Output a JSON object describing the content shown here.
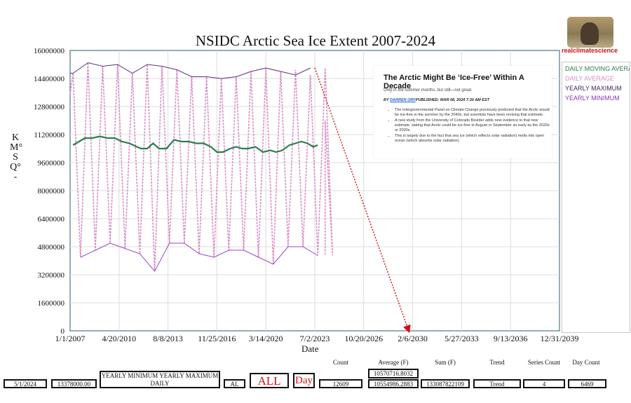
{
  "chart_data": {
    "type": "line",
    "title": "NSIDC Arctic Sea Ice Extent 2007-2024",
    "xlabel": "Date",
    "ylabel": "KM°SQ°-",
    "ylim": [
      0,
      16000000
    ],
    "yticks": [
      0,
      1600000,
      3200000,
      4800000,
      6400000,
      8000000,
      9600000,
      11200000,
      12800000,
      14400000,
      16000000
    ],
    "ytick_labels": [
      "0",
      "1600000",
      "3200000",
      "4800000",
      "6400000",
      "8000000",
      "9600000",
      "11200000",
      "12800000",
      "14400000",
      "16000000"
    ],
    "xlim": [
      2007.0,
      2040.0
    ],
    "xticks": [
      2007.0,
      2010.3,
      2013.6,
      2016.9,
      2020.2,
      2023.5,
      2026.8,
      2030.1,
      2033.4,
      2036.7,
      2040.0
    ],
    "xtick_labels": [
      "1/1/2007",
      "4/20/2010",
      "8/8/2013",
      "11/25/2016",
      "3/14/2020",
      "7/2/2023",
      "10/20/2026",
      "2/6/2030",
      "5/27/2033",
      "9/13/2036",
      "12/31/2039"
    ],
    "grid": true,
    "legend_position": "right",
    "series": [
      {
        "name": "DAILY MOVING AVERAGE",
        "color": "#2e7d4f",
        "x": [
          2007.2,
          2007.6,
          2008.0,
          2008.5,
          2009.0,
          2009.5,
          2010.0,
          2010.5,
          2011.0,
          2011.5,
          2011.8,
          2012.2,
          2012.6,
          2013.0,
          2013.5,
          2014.0,
          2014.5,
          2015.0,
          2015.5,
          2016.0,
          2016.5,
          2016.9,
          2017.3,
          2017.8,
          2018.2,
          2018.6,
          2019.0,
          2019.5,
          2020.0,
          2020.5,
          2020.9,
          2021.3,
          2021.8,
          2022.2,
          2022.6,
          2023.0,
          2023.4,
          2023.7
        ],
        "values": [
          10600000,
          10800000,
          11000000,
          11000000,
          11100000,
          11000000,
          11000000,
          10800000,
          10700000,
          10500000,
          10400000,
          10400000,
          10700000,
          10400000,
          10400000,
          10900000,
          10800000,
          10800000,
          10700000,
          10700000,
          10500000,
          10200000,
          10200000,
          10400000,
          10500000,
          10400000,
          10400000,
          10500000,
          10200000,
          10300000,
          10200000,
          10300000,
          10600000,
          10700000,
          10800000,
          10700000,
          10500000,
          10600000
        ]
      },
      {
        "name": "DAILY AVERAGE",
        "color": "#d88ec8",
        "peak_years": 17,
        "maxima": [
          14700000,
          15300000,
          15100000,
          15200000,
          14700000,
          15200000,
          15100000,
          14900000,
          14500000,
          14500000,
          14400000,
          14500000,
          14800000,
          15000000,
          14800000,
          14900000,
          14600000,
          15000000
        ],
        "minima": [
          4200000,
          4600000,
          5000000,
          4700000,
          4400000,
          3400000,
          5000000,
          5000000,
          4400000,
          4200000,
          4600000,
          4600000,
          4200000,
          3800000,
          4800000,
          4800000,
          4300000,
          4300000
        ]
      },
      {
        "name": "YEARLY MAXIMUM",
        "color": "#5a2f7a",
        "x": [
          2007.0,
          2007.2,
          2008.2,
          2009.2,
          2010.2,
          2011.2,
          2012.2,
          2013.2,
          2014.2,
          2015.2,
          2016.2,
          2017.2,
          2018.2,
          2019.2,
          2020.2,
          2021.2,
          2022.2,
          2023.2
        ],
        "values": [
          14700000,
          14700000,
          15300000,
          15100000,
          15200000,
          14700000,
          15200000,
          15100000,
          14900000,
          14500000,
          14500000,
          14400000,
          14500000,
          14800000,
          15000000,
          14800000,
          14600000,
          15000000
        ]
      },
      {
        "name": "YEARLY MINIMUM",
        "color": "#9a46c4",
        "x": [
          2007.7,
          2008.7,
          2009.7,
          2010.7,
          2011.7,
          2012.7,
          2013.7,
          2014.7,
          2015.7,
          2016.7,
          2017.7,
          2018.7,
          2019.7,
          2020.7,
          2021.7,
          2022.7,
          2023.7
        ],
        "values": [
          4200000,
          4600000,
          5000000,
          4700000,
          4400000,
          3400000,
          5000000,
          5000000,
          4400000,
          4200000,
          4600000,
          4600000,
          4200000,
          3800000,
          4800000,
          4800000,
          4300000
        ]
      }
    ],
    "annotation": {
      "from": [
        2023.5,
        15000000
      ],
      "to": [
        2029.8,
        0
      ],
      "color": "#d01010"
    }
  },
  "legend": {
    "moving_average": "DAILY MOVING AVERAGE",
    "daily_average": "DAILY AVERAGE",
    "yearly_maximum": "YEARLY MAXIMUM",
    "yearly_minimum": "YEARLY MINIMUM"
  },
  "brand": "realclimatescience",
  "article": {
    "title": "The Arctic Might Be ‘Ice-Free’ Within A Decade",
    "subtitle": "Only in the summer months, but still—not great.",
    "by": "BY",
    "author": "DARREN ORF",
    "published": "PUBLISHED: MAR 08, 2024 7:30 AM EST",
    "bullets": [
      "The Intergovernmental Panel on Climate Change previously predicted that the Arctic would be ice-free in the summer by the 2040s, but scientists have been revising that estimate.",
      "A new study from the University of Colorado Boulder adds new evidence to that new estimate, stating that Arctic could be ice-free in August or September as early as the 2020s or 2030s.",
      "This is largely due to the fact that sea ice (which reflects solar radiation) melts into open ocean (which absorbs solar radiation)."
    ]
  },
  "stats": {
    "date": "5/1/2024",
    "value": "13378000.00",
    "series_label": "YEARLY MINIMUM YEARLY MAXIMUM DAILY",
    "region": "AL",
    "all_label": "ALL",
    "day_label": "Day",
    "count_header": "Count",
    "count": "12609",
    "average_header": "Average (F)",
    "average_top": "10570716.8032",
    "average": "10554986.2883",
    "sum_header": "Sum (F)",
    "sum": "133087822109",
    "trend_header": "Trend",
    "trend": "Trend",
    "series_count_header": "Series Count",
    "series_count": "4",
    "day_count_header": "Day Count",
    "day_count": "6469"
  }
}
